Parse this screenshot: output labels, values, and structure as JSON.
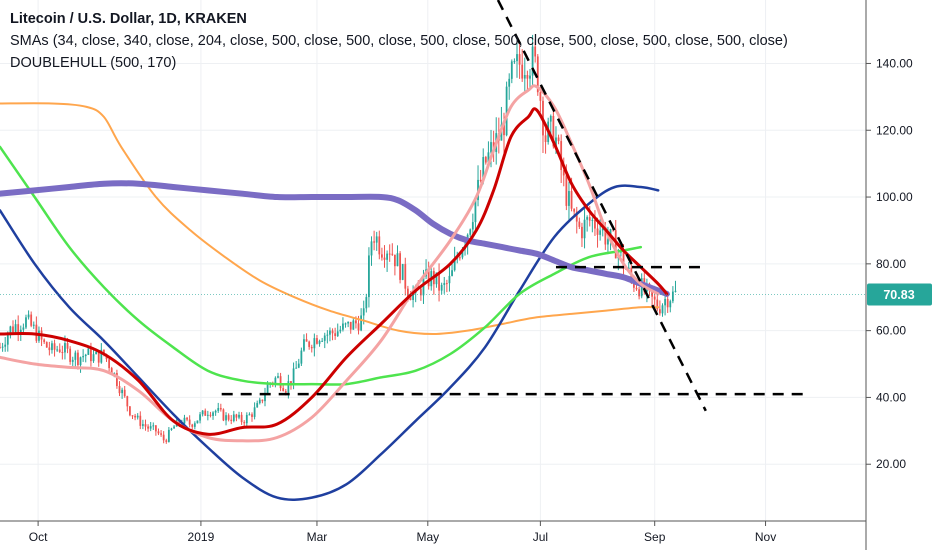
{
  "legend": {
    "symbol": "Litecoin / U.S. Dollar, 1D, KRAKEN",
    "smas": "SMAs (34, close, 340, close, 204, close, 500, close, 500, close, 500, close, 500, close, 500, close, 500, close, 500, close)",
    "doublehull": "DOUBLEHULL (500, 170)"
  },
  "colors": {
    "candle_up": "#26a69a",
    "candle_down": "#ef5350",
    "sma_red": "#cc0000",
    "sma_pink": "#f4a3a3",
    "sma_green": "#4ee44e",
    "sma_orange": "#ffa64d",
    "sma_blue": "#1f3f9f",
    "sma_purple": "#7a6cc4",
    "price_tag": "#26a69a"
  },
  "chart_data": {
    "type": "candlestick",
    "title": "Litecoin / U.S. Dollar, 1D, KRAKEN",
    "x_ticks": [
      "Oct",
      "2019",
      "Mar",
      "May",
      "Jul",
      "Sep",
      "Nov"
    ],
    "y_ticks": [
      20,
      40,
      60,
      80,
      100,
      120,
      140
    ],
    "y_tick_labels": [
      "20.00",
      "40.00",
      "60.00",
      "80.00",
      "100.00",
      "120.00",
      "140.00"
    ],
    "ylim": [
      3,
      159
    ],
    "last_price": 70.83,
    "last_price_label": "70.83",
    "x_domain": [
      0,
      100
    ],
    "x_tick_positions": [
      4.4,
      23.2,
      36.6,
      49.4,
      62.4,
      75.6,
      88.4
    ],
    "price_path": [
      [
        0,
        55
      ],
      [
        1,
        60
      ],
      [
        2,
        62
      ],
      [
        3,
        63
      ],
      [
        4,
        60
      ],
      [
        5,
        56
      ],
      [
        6,
        54
      ],
      [
        7,
        55
      ],
      [
        8,
        53
      ],
      [
        9,
        52
      ],
      [
        10,
        53
      ],
      [
        11,
        52
      ],
      [
        12,
        53
      ],
      [
        13,
        48
      ],
      [
        14,
        42
      ],
      [
        15,
        36
      ],
      [
        16,
        33
      ],
      [
        17,
        31
      ],
      [
        18,
        30
      ],
      [
        19,
        27
      ],
      [
        20,
        31
      ],
      [
        21,
        33
      ],
      [
        22,
        32
      ],
      [
        23,
        34
      ],
      [
        24,
        36
      ],
      [
        25,
        36
      ],
      [
        26,
        34
      ],
      [
        27,
        34
      ],
      [
        28,
        33
      ],
      [
        29,
        35
      ],
      [
        30,
        38
      ],
      [
        31,
        44
      ],
      [
        32,
        46
      ],
      [
        33,
        43
      ],
      [
        34,
        47
      ],
      [
        35,
        55
      ],
      [
        36,
        57
      ],
      [
        37,
        59
      ],
      [
        38,
        59
      ],
      [
        39,
        60
      ],
      [
        40,
        61
      ],
      [
        41,
        62
      ],
      [
        42,
        64
      ],
      [
        43,
        90
      ],
      [
        44,
        85
      ],
      [
        45,
        85
      ],
      [
        46,
        80
      ],
      [
        47,
        73
      ],
      [
        48,
        70
      ],
      [
        49,
        75
      ],
      [
        50,
        76
      ],
      [
        51,
        72
      ],
      [
        52,
        75
      ],
      [
        53,
        84
      ],
      [
        54,
        90
      ],
      [
        55,
        100
      ],
      [
        56,
        110
      ],
      [
        57,
        115
      ],
      [
        58,
        120
      ],
      [
        59,
        135
      ],
      [
        60,
        140
      ],
      [
        61,
        142
      ],
      [
        62,
        138
      ],
      [
        63,
        118
      ],
      [
        64,
        120
      ],
      [
        65,
        105
      ],
      [
        66,
        95
      ],
      [
        67,
        90
      ],
      [
        68,
        93
      ],
      [
        69,
        92
      ],
      [
        70,
        88
      ],
      [
        71,
        86
      ],
      [
        72,
        80
      ],
      [
        73,
        75
      ],
      [
        74,
        73
      ],
      [
        75,
        70
      ],
      [
        76,
        67
      ],
      [
        77,
        70
      ],
      [
        78,
        71
      ]
    ],
    "series": [
      {
        "name": "SMA 34",
        "color_key": "sma_red",
        "width": 3,
        "points": [
          [
            0,
            59
          ],
          [
            4,
            59
          ],
          [
            8,
            57
          ],
          [
            12,
            53
          ],
          [
            16,
            45
          ],
          [
            20,
            33
          ],
          [
            24,
            29
          ],
          [
            28,
            31
          ],
          [
            32,
            32
          ],
          [
            36,
            40
          ],
          [
            40,
            52
          ],
          [
            44,
            62
          ],
          [
            48,
            72
          ],
          [
            52,
            80
          ],
          [
            55,
            90
          ],
          [
            57,
            102
          ],
          [
            59,
            118
          ],
          [
            61,
            124
          ],
          [
            62,
            126
          ],
          [
            64,
            116
          ],
          [
            66,
            104
          ],
          [
            68,
            96
          ],
          [
            70,
            90
          ],
          [
            72,
            84
          ],
          [
            74,
            79
          ],
          [
            76,
            74
          ],
          [
            77,
            71
          ]
        ]
      },
      {
        "name": "SMA 340",
        "color_key": "sma_pink",
        "width": 3,
        "points": [
          [
            0,
            52
          ],
          [
            4,
            50
          ],
          [
            8,
            49
          ],
          [
            12,
            48
          ],
          [
            16,
            42
          ],
          [
            20,
            33
          ],
          [
            24,
            28
          ],
          [
            28,
            27
          ],
          [
            32,
            28
          ],
          [
            36,
            34
          ],
          [
            40,
            45
          ],
          [
            44,
            57
          ],
          [
            48,
            73
          ],
          [
            52,
            87
          ],
          [
            55,
            100
          ],
          [
            57,
            114
          ],
          [
            59,
            127
          ],
          [
            61,
            132
          ],
          [
            62,
            133
          ],
          [
            64,
            127
          ],
          [
            66,
            116
          ],
          [
            68,
            104
          ],
          [
            70,
            90
          ],
          [
            72,
            80
          ],
          [
            74,
            74
          ],
          [
            76,
            71
          ]
        ]
      },
      {
        "name": "SMA 204",
        "color_key": "sma_green",
        "width": 2.5,
        "points": [
          [
            0,
            115
          ],
          [
            4,
            100
          ],
          [
            8,
            85
          ],
          [
            12,
            73
          ],
          [
            16,
            63
          ],
          [
            20,
            55
          ],
          [
            24,
            48
          ],
          [
            28,
            45
          ],
          [
            32,
            44
          ],
          [
            36,
            44
          ],
          [
            40,
            44
          ],
          [
            44,
            46
          ],
          [
            48,
            48
          ],
          [
            52,
            53
          ],
          [
            56,
            61
          ],
          [
            60,
            71
          ],
          [
            64,
            77
          ],
          [
            68,
            82
          ],
          [
            72,
            84
          ],
          [
            74,
            85
          ]
        ]
      },
      {
        "name": "SMA 500",
        "color_key": "sma_orange",
        "width": 2,
        "points": [
          [
            0,
            128
          ],
          [
            6,
            128
          ],
          [
            10,
            127
          ],
          [
            12,
            124
          ],
          [
            14,
            115
          ],
          [
            18,
            100
          ],
          [
            22,
            90
          ],
          [
            26,
            82
          ],
          [
            30,
            75
          ],
          [
            34,
            70
          ],
          [
            38,
            66
          ],
          [
            42,
            63
          ],
          [
            46,
            60
          ],
          [
            50,
            59
          ],
          [
            54,
            60
          ],
          [
            58,
            62
          ],
          [
            62,
            64
          ],
          [
            66,
            65
          ],
          [
            70,
            66
          ],
          [
            74,
            67
          ],
          [
            76,
            67
          ]
        ]
      },
      {
        "name": "SMA 500 b",
        "color_key": "sma_blue",
        "width": 2.5,
        "points": [
          [
            0,
            96
          ],
          [
            4,
            80
          ],
          [
            8,
            67
          ],
          [
            12,
            57
          ],
          [
            16,
            46
          ],
          [
            20,
            35
          ],
          [
            24,
            25
          ],
          [
            28,
            16
          ],
          [
            32,
            10
          ],
          [
            36,
            10
          ],
          [
            40,
            14
          ],
          [
            44,
            23
          ],
          [
            48,
            33
          ],
          [
            52,
            43
          ],
          [
            56,
            55
          ],
          [
            60,
            72
          ],
          [
            64,
            88
          ],
          [
            68,
            98
          ],
          [
            71,
            103
          ],
          [
            74,
            103
          ],
          [
            76,
            102
          ]
        ]
      },
      {
        "name": "DOUBLEHULL",
        "color_key": "sma_purple",
        "width": 6,
        "points": [
          [
            0,
            101
          ],
          [
            4,
            102
          ],
          [
            8,
            103
          ],
          [
            12,
            104
          ],
          [
            16,
            104
          ],
          [
            20,
            103
          ],
          [
            24,
            102
          ],
          [
            28,
            101
          ],
          [
            32,
            100
          ],
          [
            36,
            100
          ],
          [
            40,
            100
          ],
          [
            44,
            100
          ],
          [
            46,
            99
          ],
          [
            48,
            96
          ],
          [
            50,
            92
          ],
          [
            52,
            89
          ],
          [
            54,
            87
          ],
          [
            56,
            86
          ],
          [
            58,
            85
          ],
          [
            60,
            84
          ],
          [
            62,
            83
          ],
          [
            64,
            81
          ],
          [
            66,
            79
          ],
          [
            68,
            78
          ],
          [
            70,
            77
          ],
          [
            72,
            76
          ],
          [
            74,
            74
          ],
          [
            76,
            72
          ],
          [
            77,
            71
          ]
        ]
      }
    ],
    "drawings": [
      {
        "points": [
          [
            57.5,
            159
          ],
          [
            81.5,
            36
          ]
        ],
        "dash": "11 8",
        "color": "#000000"
      },
      {
        "points": [
          [
            25.6,
            41
          ],
          [
            93,
            41
          ]
        ],
        "dash": "11 8",
        "color": "#000000"
      },
      {
        "points": [
          [
            64.2,
            79
          ],
          [
            81.2,
            79
          ]
        ],
        "dash": "11 8",
        "color": "#000000"
      }
    ]
  }
}
